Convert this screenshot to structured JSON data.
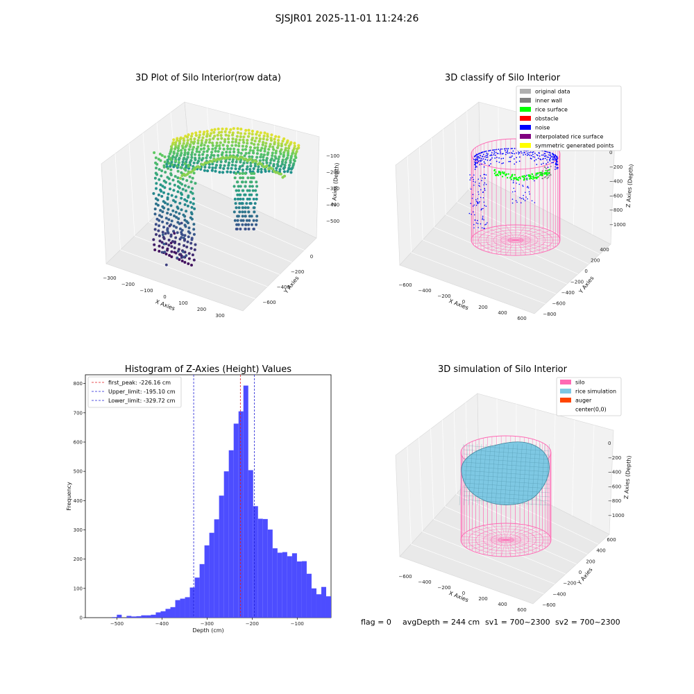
{
  "suptitle": "SJSJR01 2025-11-01 11:24:26",
  "footer": {
    "flag": "flag = 0",
    "avg": "avgDepth = 244 cm",
    "sv1": "sv1 = 700~2300",
    "sv2": "sv2 = 700~2300"
  },
  "colors": {
    "hist_bar": "#4d4dff",
    "first_peak": "#e41a1c",
    "limit": "#1f1fd6",
    "silo": "#ff69b4",
    "rice_sim": "#7ec8e3",
    "auger": "#ff4500",
    "rice_surface": "#00ff00",
    "noise": "#0000ff",
    "inner_wall": "#808080"
  },
  "chart_data": [
    {
      "type": "scatter",
      "title": "3D Plot of Silo Interior(row data)",
      "xlabel": "X Axies",
      "ylabel": "Y Axies",
      "zlabel": "Z Axies (Depth)",
      "xticks": [
        "−300",
        "−200",
        "−100",
        "0",
        "100",
        "200",
        "300"
      ],
      "yticks": [
        "0",
        "−200",
        "−400",
        "−600"
      ],
      "zticks": [
        "−100",
        "−200",
        "−300",
        "−400",
        "−500"
      ],
      "colormap": "viridis"
    },
    {
      "type": "scatter",
      "title": "3D classify of Silo Interior",
      "xlabel": "X Axies",
      "ylabel": "Y Axies",
      "zlabel": "Z Axies (Depth)",
      "xticks": [
        "−600",
        "−400",
        "−200",
        "0",
        "200",
        "400",
        "600"
      ],
      "yticks": [
        "400",
        "200",
        "0",
        "−200",
        "−400",
        "−600",
        "−800"
      ],
      "zticks": [
        "0",
        "−200",
        "−400",
        "−600",
        "−800",
        "−1000"
      ],
      "legend_position": "top-right",
      "legend": [
        {
          "label": "original data",
          "color": "#b0b0b0"
        },
        {
          "label": "inner wall",
          "color": "#808080"
        },
        {
          "label": "rice surface",
          "color": "#00ff00"
        },
        {
          "label": "obstacle",
          "color": "#ff0000"
        },
        {
          "label": "noise",
          "color": "#0000ff"
        },
        {
          "label": "interpolated rice surface",
          "color": "#800080"
        },
        {
          "label": "symmetric generated points",
          "color": "#ffff00"
        }
      ]
    },
    {
      "type": "bar",
      "title": "Histogram of Z-Axies (Height) Values",
      "xlabel": "Depth (cm)",
      "ylabel": "Frequency",
      "xlim": [
        -570,
        -25
      ],
      "ylim": [
        0,
        830
      ],
      "xticks": [
        -500,
        -400,
        -300,
        -200,
        -100
      ],
      "yticks": [
        0,
        100,
        200,
        300,
        400,
        500,
        600,
        700,
        800
      ],
      "bin_width": 10.8,
      "bin_start": -511,
      "values": [
        2,
        10,
        0,
        6,
        4,
        5,
        8,
        8,
        10,
        18,
        22,
        30,
        36,
        60,
        65,
        70,
        103,
        137,
        183,
        247,
        290,
        336,
        417,
        500,
        572,
        663,
        705,
        793,
        504,
        381,
        338,
        337,
        301,
        237,
        222,
        224,
        210,
        220,
        192,
        193,
        150,
        100,
        80,
        105,
        73
      ],
      "lines": [
        {
          "label": "first_peak: -226.16 cm",
          "x": -226.16,
          "color": "#e41a1c"
        },
        {
          "label": "Upper_limit: -195.10 cm",
          "x": -195.1,
          "color": "#1f1fd6"
        },
        {
          "label": "Lower_limit: -329.72 cm",
          "x": -329.72,
          "color": "#1f1fd6"
        }
      ],
      "legend_position": "top-left"
    },
    {
      "type": "scatter",
      "title": "3D simulation of Silo Interior",
      "xlabel": "X Axies",
      "ylabel": "Y Axies",
      "zlabel": "Z Axies (Depth)",
      "xticks": [
        "−600",
        "−400",
        "−200",
        "0",
        "200",
        "400",
        "600"
      ],
      "yticks": [
        "600",
        "400",
        "200",
        "0",
        "−200",
        "−400",
        "−600"
      ],
      "zticks": [
        "0",
        "−200",
        "−400",
        "−600",
        "−800",
        "−1000"
      ],
      "legend_position": "top-right",
      "legend": [
        {
          "label": "silo",
          "color": "#ff69b4"
        },
        {
          "label": "rice simulation",
          "color": "#7ec8e3"
        },
        {
          "label": "auger",
          "color": "#ff4500"
        },
        {
          "label": "center(0,0)",
          "color": ""
        }
      ]
    }
  ]
}
